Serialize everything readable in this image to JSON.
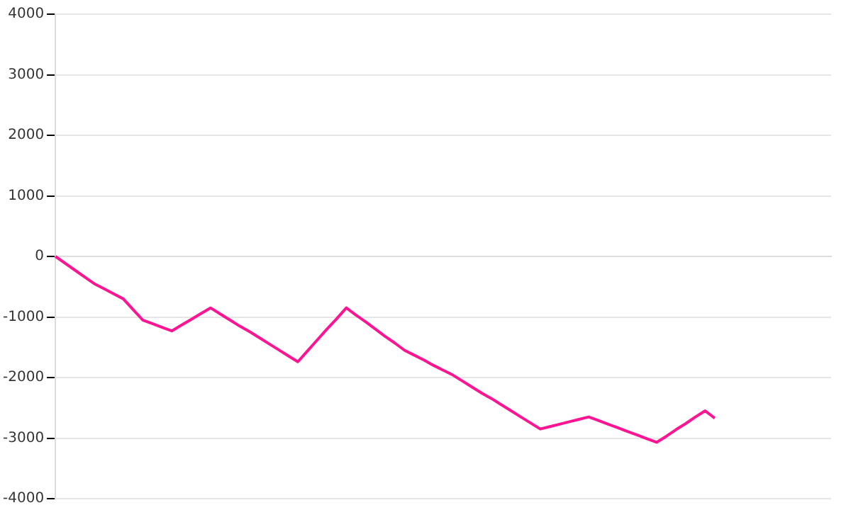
{
  "chart_data": {
    "type": "line",
    "categories": [
      null,
      null,
      null,
      null,
      null,
      null,
      null,
      null,
      null,
      null,
      null,
      null,
      null,
      null,
      null,
      null,
      null,
      null,
      null,
      null,
      null,
      null,
      null,
      null,
      null,
      null,
      null,
      null,
      null,
      null,
      null,
      null,
      null,
      null,
      null,
      null,
      null,
      null,
      null,
      null,
      null,
      null,
      null,
      null,
      null,
      null,
      null,
      null,
      null,
      null,
      null,
      null,
      null,
      null,
      null,
      null,
      null,
      null,
      null,
      null,
      null,
      null,
      null,
      null,
      null,
      null,
      null,
      null,
      null,
      null,
      null,
      null,
      null,
      null,
      null,
      null,
      null,
      null,
      null,
      null,
      null
    ],
    "series": [
      {
        "color": "#ff1493",
        "values": [
          0,
          -113,
          -225,
          -338,
          -450,
          -533,
          -617,
          -700,
          -875,
          -1050,
          -1110,
          -1170,
          -1230,
          -1135,
          -1040,
          -945,
          -850,
          -950,
          -1050,
          -1150,
          -1240,
          -1340,
          -1440,
          -1540,
          -1640,
          -1740,
          -1560,
          -1380,
          -1200,
          -1030,
          -850,
          -970,
          -1080,
          -1200,
          -1320,
          -1430,
          -1550,
          -1630,
          -1710,
          -1800,
          -1880,
          -1960,
          -2060,
          -2160,
          -2260,
          -2350,
          -2450,
          -2550,
          -2650,
          -2750,
          -2850,
          -2810,
          -2770,
          -2730,
          -2690,
          -2650,
          -2710,
          -2770,
          -2830,
          -2890,
          -2950,
          -3010,
          -3070,
          -2970,
          -2860,
          -2760,
          -2650,
          -2550,
          -2670,
          null,
          null,
          null,
          null,
          null,
          null,
          null,
          null,
          null,
          null,
          null,
          null
        ]
      }
    ],
    "ylim": [
      -4000,
      4000
    ],
    "yticks": [
      -4000,
      -3000,
      -2000,
      -1000,
      0,
      1000,
      2000,
      3000,
      4000
    ],
    "grid": "y",
    "tick_labels": "y",
    "legend": false,
    "marker": "none",
    "line_style": "solid"
  }
}
